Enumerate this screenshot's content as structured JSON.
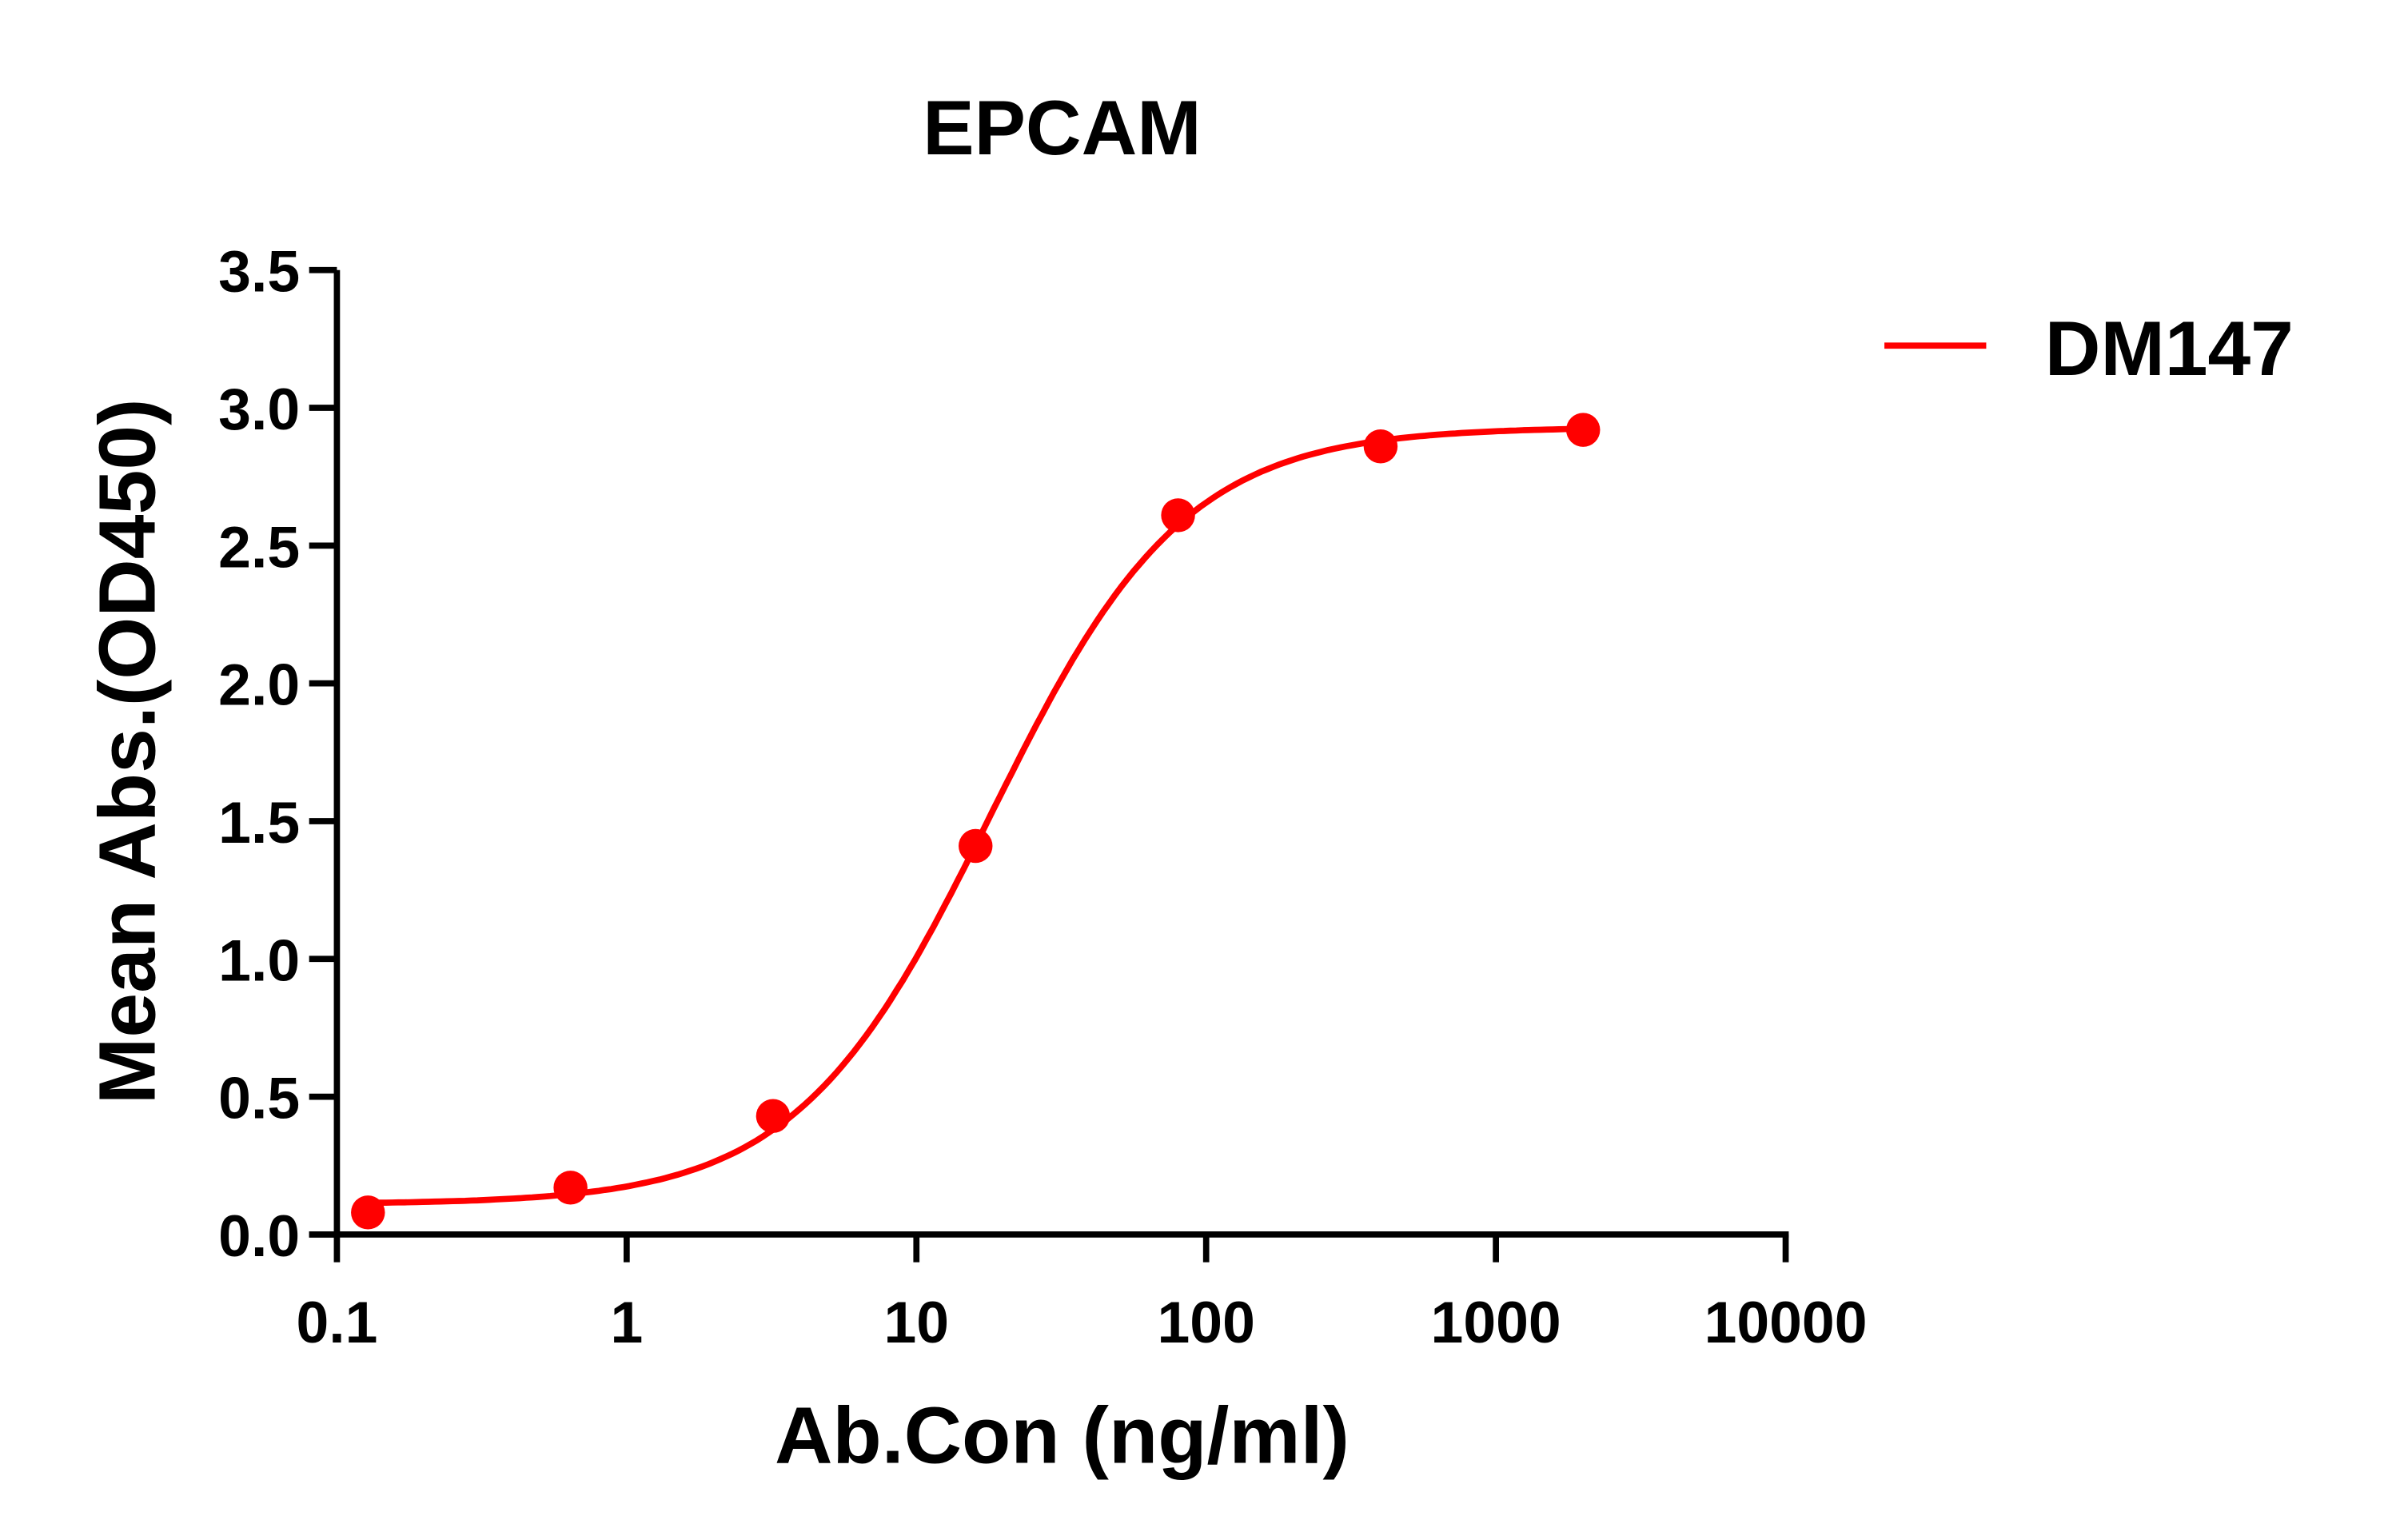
{
  "chart_data": {
    "type": "line",
    "title": "EPCAM",
    "xlabel": "Ab.Con (ng/ml)",
    "ylabel": "Mean Abs.(OD450)",
    "x_scale": "log",
    "xlim": [
      0.1,
      10000
    ],
    "ylim": [
      0,
      3.5
    ],
    "x_ticks": [
      "0.1",
      "1",
      "10",
      "100",
      "1000",
      "10000"
    ],
    "y_ticks": [
      "0.0",
      "0.5",
      "1.0",
      "1.5",
      "2.0",
      "2.5",
      "3.0",
      "3.5"
    ],
    "grid": false,
    "legend_position": "top-right",
    "series": [
      {
        "name": "DM147",
        "color": "#ff0000",
        "x": [
          0.128,
          0.64,
          3.2,
          16,
          80,
          400,
          2000
        ],
        "y": [
          0.08,
          0.17,
          0.43,
          1.41,
          2.61,
          2.86,
          2.92
        ],
        "fit": "sigmoidal curve"
      }
    ]
  }
}
